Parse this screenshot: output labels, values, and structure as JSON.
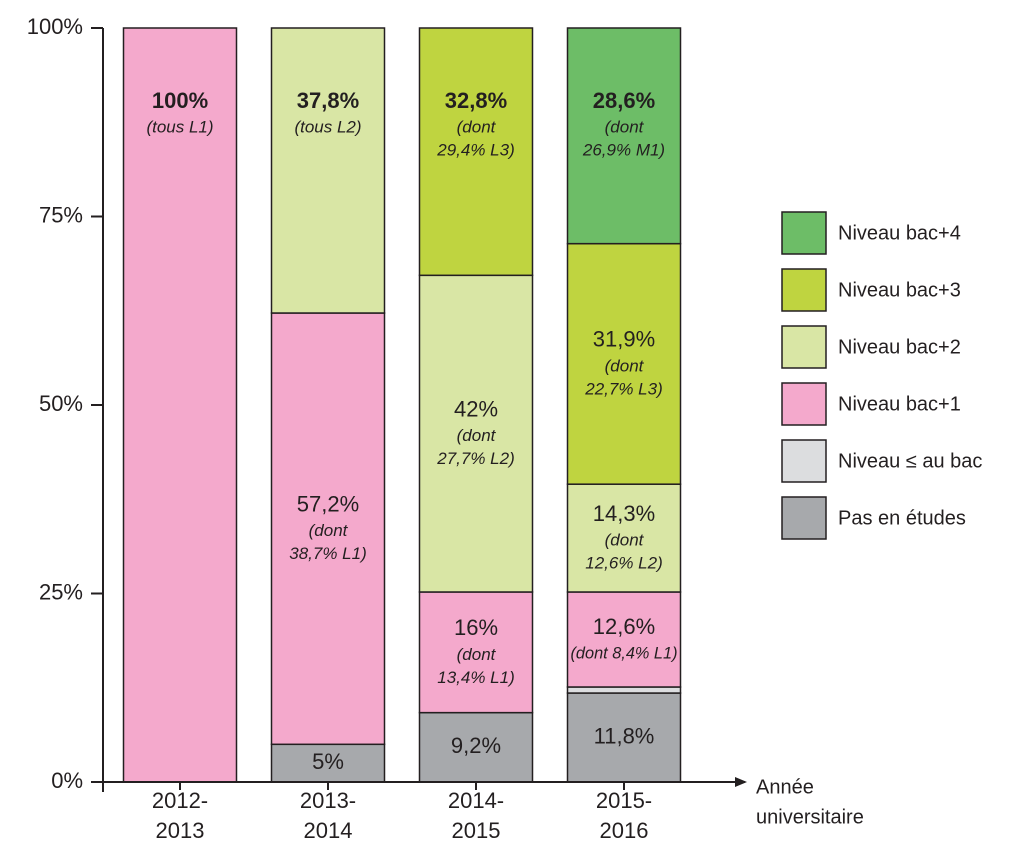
{
  "chart_data": {
    "type": "stacked_bar",
    "categories": [
      [
        "2012-",
        "2013"
      ],
      [
        "2013-",
        "2014"
      ],
      [
        "2014-",
        "2015"
      ],
      [
        "2015-",
        "2016"
      ]
    ],
    "x_label": [
      "Année",
      "universitaire"
    ],
    "ylim": [
      0,
      100
    ],
    "yticks": [
      {
        "value": 0,
        "label": "0%"
      },
      {
        "value": 25,
        "label": "25%"
      },
      {
        "value": 50,
        "label": "50%"
      },
      {
        "value": 75,
        "label": "75%"
      },
      {
        "value": 100,
        "label": "100%"
      }
    ],
    "series": [
      {
        "name": "Pas en études",
        "color": "#a7a9ac",
        "values": [
          null,
          5,
          9.2,
          11.8
        ],
        "value_labels": [
          null,
          "5%",
          "9,2%",
          "11,8%"
        ],
        "notes": [
          null,
          null,
          null,
          null
        ]
      },
      {
        "name": "Niveau ≤ au bac",
        "color": "#dcdddf",
        "values": [
          null,
          null,
          null,
          0.8
        ],
        "value_labels": [
          null,
          null,
          null,
          null
        ],
        "notes": [
          null,
          null,
          null,
          null
        ]
      },
      {
        "name": "Niveau bac+1",
        "color": "#f4a9cc",
        "values": [
          100,
          57.2,
          16,
          12.6
        ],
        "value_labels": [
          "100%",
          "57,2%",
          "16%",
          "12,6%"
        ],
        "notes": [
          [
            "(tous L1)"
          ],
          [
            "(dont",
            "38,7% L1)"
          ],
          [
            "(dont",
            "13,4% L1)"
          ],
          [
            "(dont 8,4% L1)"
          ]
        ]
      },
      {
        "name": "Niveau bac+2",
        "color": "#d9e6a5",
        "values": [
          null,
          37.8,
          42,
          14.3
        ],
        "value_labels": [
          null,
          "37,8%",
          "42%",
          "14,3%"
        ],
        "notes": [
          null,
          [
            "(tous L2)"
          ],
          [
            "(dont",
            "27,7% L2)"
          ],
          [
            "(dont",
            "12,6% L2)"
          ]
        ]
      },
      {
        "name": "Niveau bac+3",
        "color": "#bfd440",
        "values": [
          null,
          null,
          32.8,
          31.9
        ],
        "value_labels": [
          null,
          null,
          "32,8%",
          "31,9%"
        ],
        "notes": [
          null,
          null,
          [
            "(dont",
            "29,4% L3)"
          ],
          [
            "(dont",
            "22,7% L3)"
          ]
        ]
      },
      {
        "name": "Niveau bac+4",
        "color": "#6dbd67",
        "values": [
          null,
          null,
          null,
          28.6
        ],
        "value_labels": [
          null,
          null,
          null,
          "28,6%"
        ],
        "notes": [
          null,
          null,
          null,
          [
            "(dont",
            "26,9% M1)"
          ]
        ]
      }
    ]
  }
}
